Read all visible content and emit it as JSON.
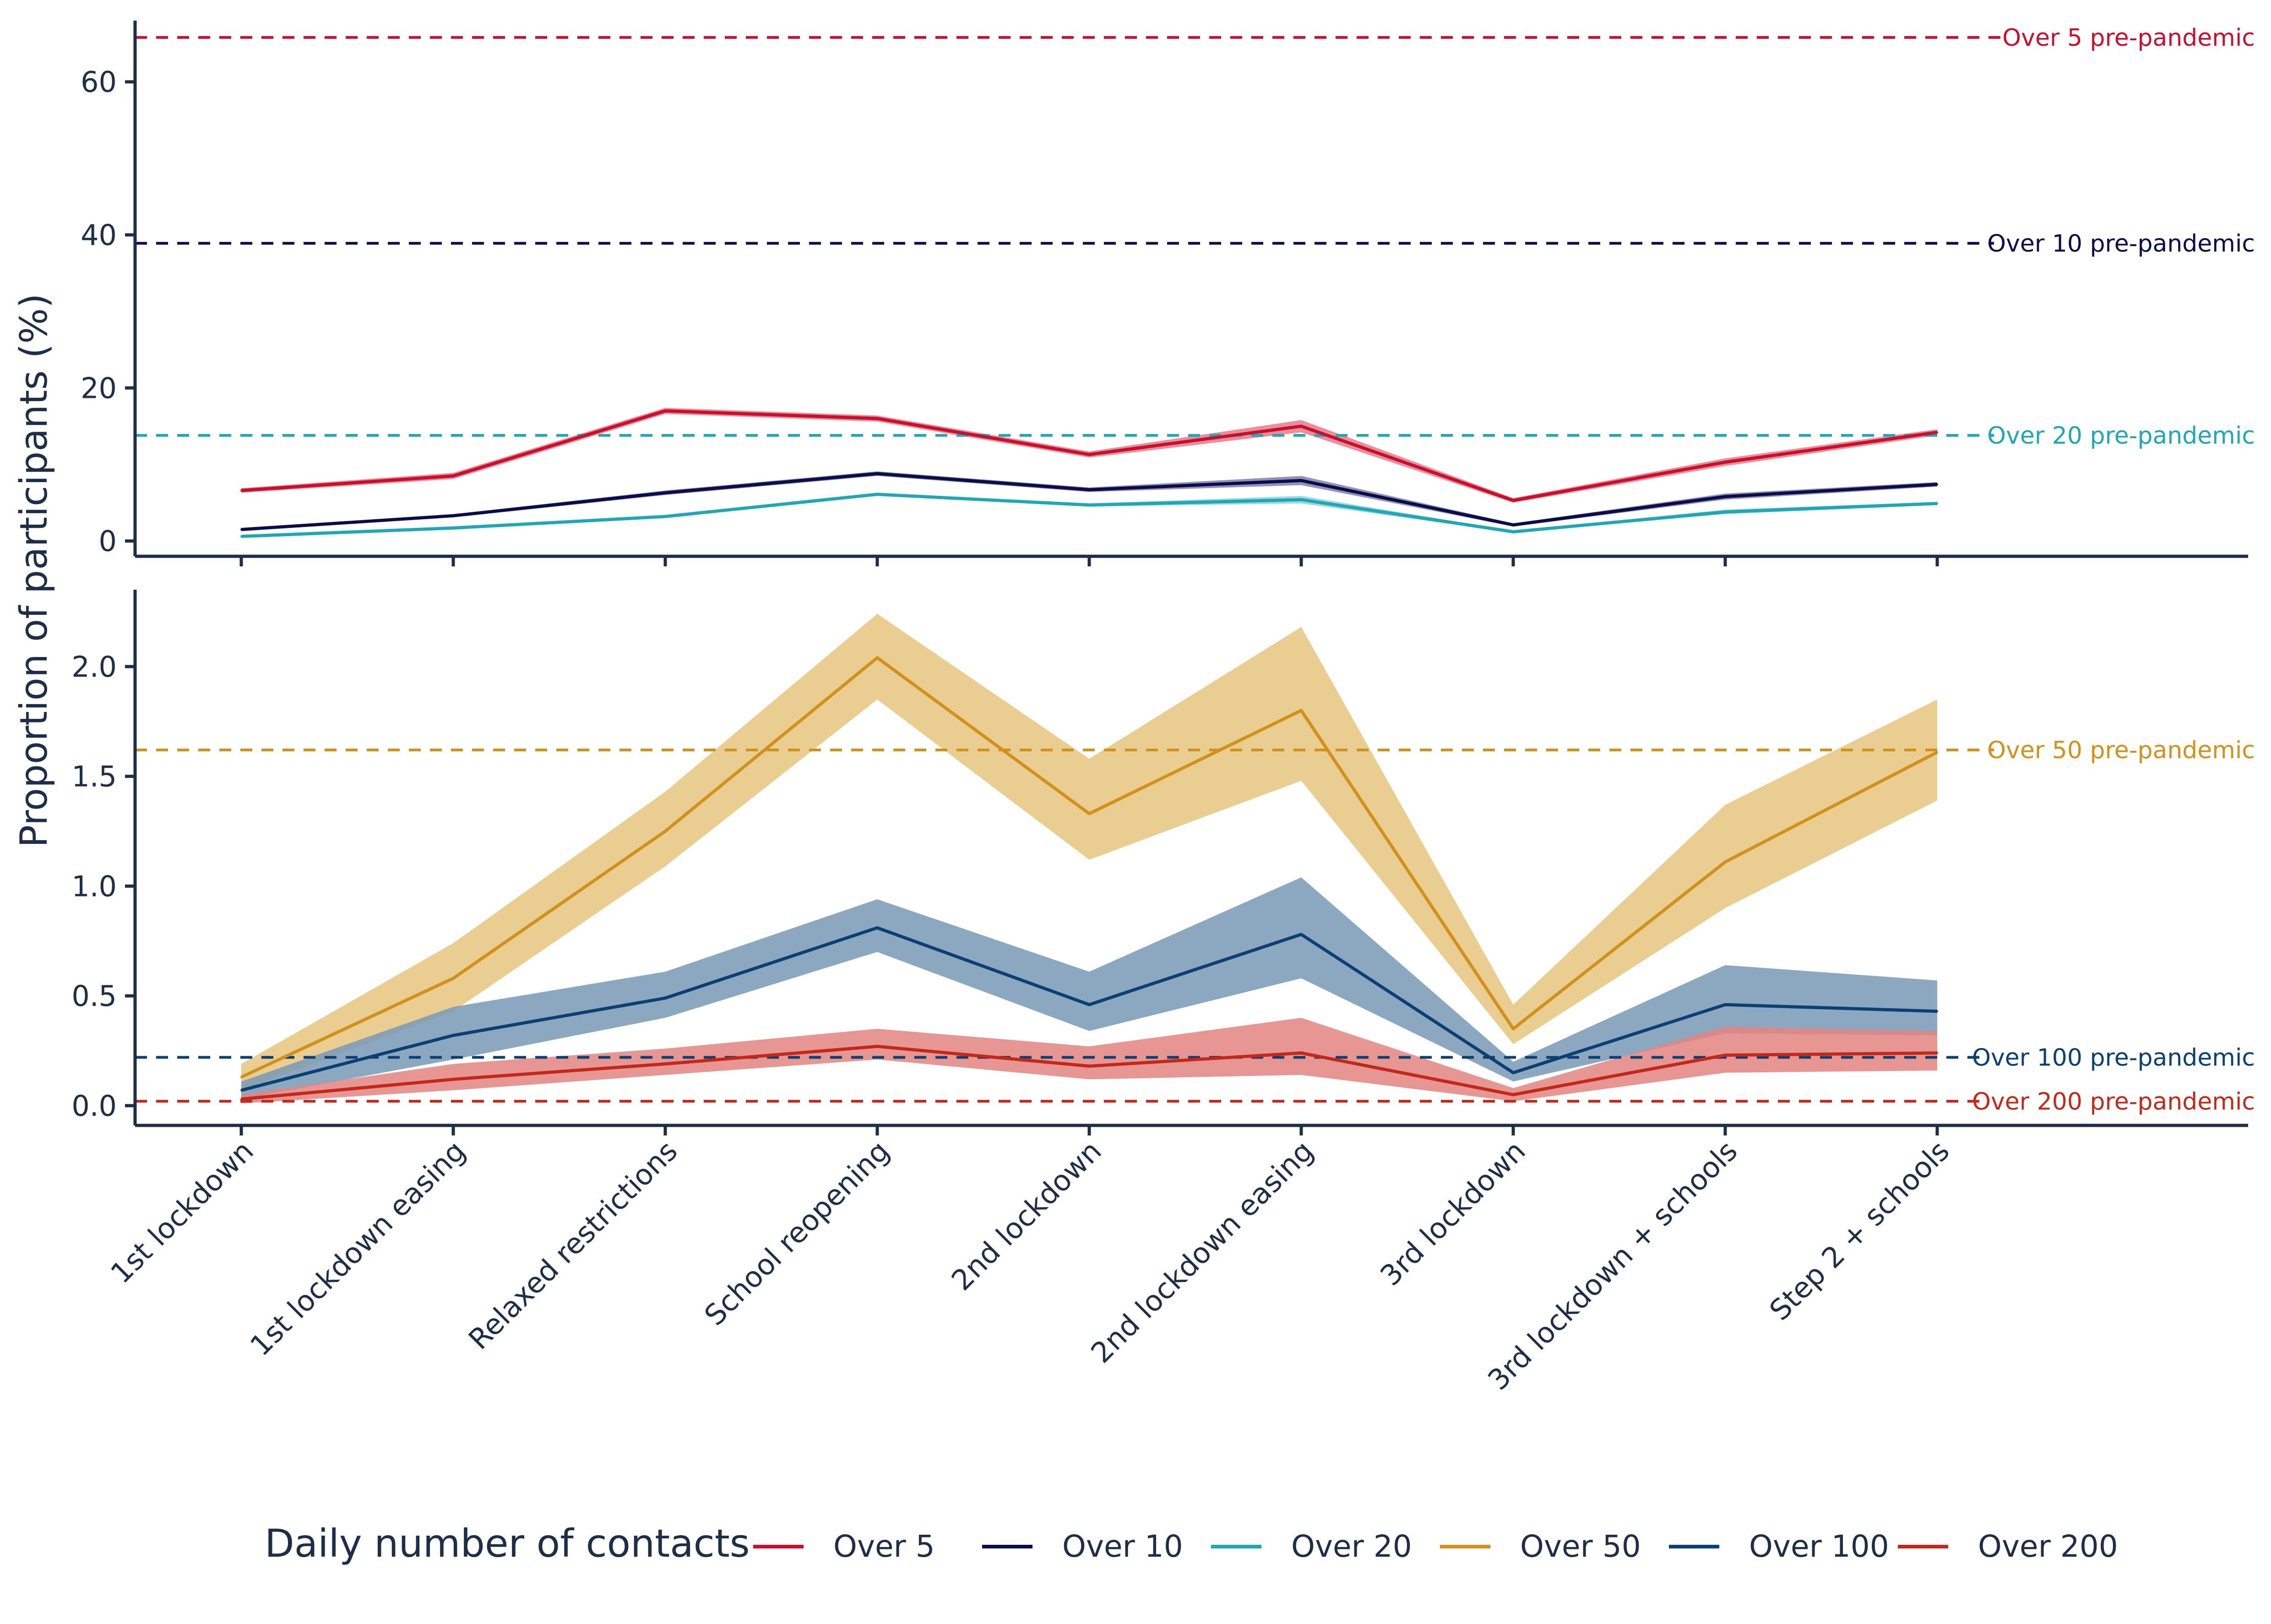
{
  "chart_data": {
    "type": "line",
    "ylabel": "Proportion of participants (%)",
    "categories": [
      "1st lockdown",
      "1st lockdown easing",
      "Relaxed restrictions",
      "School reopening",
      "2nd lockdown",
      "2nd lockdown easing",
      "3rd lockdown",
      "3rd lockdown + schools",
      "Step 2 + schools"
    ],
    "legend": {
      "title": "Daily number of contacts",
      "placement": "bottom"
    },
    "grid": false,
    "panels": [
      {
        "id": "top",
        "ylim": [
          -2,
          68
        ],
        "yticks": [
          0,
          20,
          40,
          60
        ],
        "series": [
          {
            "name": "Over 5",
            "color": "#c8102e",
            "band_color": "#e8798a",
            "values": [
              6.6,
              8.5,
              17.0,
              16.0,
              11.3,
              15.0,
              5.3,
              10.3,
              14.2
            ],
            "lower": [
              6.3,
              8.1,
              16.6,
              15.6,
              10.9,
              14.2,
              5.0,
              9.8,
              13.8
            ],
            "upper": [
              6.9,
              8.9,
              17.4,
              16.4,
              11.7,
              15.8,
              5.6,
              10.8,
              14.6
            ]
          },
          {
            "name": "Over 10",
            "color": "#0b0c4a",
            "band_color": "#7e7fa8",
            "values": [
              1.5,
              3.3,
              6.3,
              8.8,
              6.7,
              7.9,
              2.1,
              5.8,
              7.4
            ],
            "lower": [
              1.3,
              3.1,
              6.0,
              8.5,
              6.4,
              7.3,
              1.9,
              5.4,
              7.1
            ],
            "upper": [
              1.7,
              3.5,
              6.6,
              9.1,
              7.0,
              8.5,
              2.3,
              6.2,
              7.7
            ]
          },
          {
            "name": "Over 20",
            "color": "#20a7b5",
            "band_color": "#8fd3da",
            "values": [
              0.6,
              1.7,
              3.2,
              6.1,
              4.7,
              5.4,
              1.2,
              3.8,
              4.9
            ],
            "lower": [
              0.5,
              1.5,
              3.0,
              5.9,
              4.5,
              4.9,
              1.1,
              3.5,
              4.7
            ],
            "upper": [
              0.7,
              1.9,
              3.4,
              6.3,
              4.9,
              5.9,
              1.3,
              4.1,
              5.1
            ]
          }
        ],
        "reference_lines": [
          {
            "label": "Over 5 pre-pandemic",
            "value": 65.8,
            "color": "#c8102e"
          },
          {
            "label": "Over 10 pre-pandemic",
            "value": 38.9,
            "color": "#0b0c4a"
          },
          {
            "label": "Over 20 pre-pandemic",
            "value": 13.8,
            "color": "#20a7b5"
          }
        ]
      },
      {
        "id": "bottom",
        "ylim": [
          -0.09,
          2.35
        ],
        "yticks": [
          0.0,
          0.5,
          1.0,
          1.5,
          2.0
        ],
        "ytick_labels": [
          "0.0",
          "0.5",
          "1.0",
          "1.5",
          "2.0"
        ],
        "series": [
          {
            "name": "Over 50",
            "color": "#d0921c",
            "band_color": "#e6c47c",
            "values": [
              0.13,
              0.58,
              1.25,
              2.04,
              1.33,
              1.8,
              0.35,
              1.11,
              1.61
            ],
            "lower": [
              0.07,
              0.43,
              1.09,
              1.85,
              1.12,
              1.48,
              0.28,
              0.9,
              1.39
            ],
            "upper": [
              0.19,
              0.74,
              1.43,
              2.24,
              1.58,
              2.18,
              0.46,
              1.37,
              1.85
            ]
          },
          {
            "name": "Over 100",
            "color": "#0c4073",
            "band_color": "#7899b6",
            "values": [
              0.07,
              0.32,
              0.49,
              0.81,
              0.46,
              0.78,
              0.15,
              0.46,
              0.43
            ],
            "lower": [
              0.03,
              0.21,
              0.4,
              0.7,
              0.34,
              0.58,
              0.11,
              0.33,
              0.32
            ],
            "upper": [
              0.11,
              0.45,
              0.61,
              0.94,
              0.61,
              1.04,
              0.2,
              0.64,
              0.57
            ]
          },
          {
            "name": "Over 200",
            "color": "#c4281b",
            "band_color": "#e38580",
            "values": [
              0.03,
              0.12,
              0.19,
              0.27,
              0.18,
              0.24,
              0.05,
              0.23,
              0.24
            ],
            "lower": [
              0.01,
              0.07,
              0.14,
              0.21,
              0.12,
              0.14,
              0.02,
              0.15,
              0.16
            ],
            "upper": [
              0.05,
              0.19,
              0.26,
              0.35,
              0.27,
              0.4,
              0.08,
              0.36,
              0.34
            ]
          }
        ],
        "reference_lines": [
          {
            "label": "Over 50 pre-pandemic",
            "value": 1.62,
            "color": "#d0921c"
          },
          {
            "label": "Over 100 pre-pandemic",
            "value": 0.22,
            "color": "#0c4073"
          },
          {
            "label": "Over 200 pre-pandemic",
            "value": 0.02,
            "color": "#c4281b"
          }
        ]
      }
    ]
  }
}
